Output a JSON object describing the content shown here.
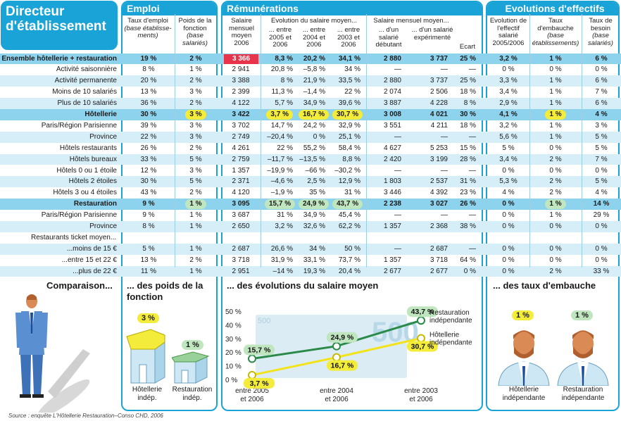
{
  "title": "Directeur d'établissement",
  "sections": {
    "emploi": "Emploi",
    "remunerations": "Rémunérations",
    "evolutions": "Evolutions d'effectifs"
  },
  "columns": {
    "taux_emploi": "Taux d'emploi",
    "taux_emploi_note": "(base établisse-ments)",
    "poids_fonction": "Poids de la fonction",
    "poids_fonction_note": "(base salariés)",
    "salaire_mensuel_moyen": "Salaire mensuel moyen 2006",
    "evolution_salaire": "Evolution du salaire moyen...",
    "entre_2005": "... entre 2005 et 2006",
    "entre_2004": "... entre 2004 et 2006",
    "entre_2003": "... entre 2003 et 2006",
    "salaire_mensuel_moyen2": "Salaire mensuel moyen...",
    "debutant": "... d'un salarié débutant",
    "experimente": "... d'un salarié expérimenté",
    "ecart": "Ecart",
    "evolution_effectif": "Evolution de l'effectif salarié 2005/2006",
    "taux_embauche": "Taux d'embauche",
    "taux_embauche_note": "(base établissements)",
    "taux_besoin": "Taux de besoin",
    "taux_besoin_note": "(base salariés)"
  },
  "rows": [
    {
      "label": "Ensemble hôtellerie + restauration",
      "style": "hl",
      "v": [
        "19 %",
        "2 %",
        "3 366",
        "8,3 %",
        "20,2 %",
        "34,1 %",
        "2 880",
        "3 737",
        "25 %",
        "3,2 %",
        "1 %",
        "6 %"
      ]
    },
    {
      "label": "Activité saisonnière",
      "style": "",
      "v": [
        "8 %",
        "1 %",
        "2 941",
        "20,8 %",
        "–5,8 %",
        "34 %",
        "—",
        "—",
        "—",
        "0 %",
        "0 %",
        "0 %"
      ]
    },
    {
      "label": "Activité permanente",
      "style": "alt",
      "v": [
        "20 %",
        "2 %",
        "3 388",
        "8 %",
        "21,9 %",
        "33,5 %",
        "2 880",
        "3 737",
        "25 %",
        "3,3 %",
        "1 %",
        "6 %"
      ]
    },
    {
      "label": "Moins de 10 salariés",
      "style": "",
      "v": [
        "13 %",
        "3 %",
        "2 399",
        "11,3 %",
        "–1,4 %",
        "22 %",
        "2 074",
        "2 506",
        "18 %",
        "3,4 %",
        "1 %",
        "7 %"
      ]
    },
    {
      "label": "Plus de 10 salariés",
      "style": "alt",
      "v": [
        "36 %",
        "2 %",
        "4 122",
        "5,7 %",
        "34,9 %",
        "39,6 %",
        "3 887",
        "4 228",
        "8 %",
        "2,9 %",
        "1 %",
        "6 %"
      ]
    },
    {
      "label": "Hôtellerie",
      "style": "hl",
      "v": [
        "30 %",
        "3 %",
        "3 422",
        "3,7 %",
        "16,7 %",
        "30,7 %",
        "3 008",
        "4 021",
        "30 %",
        "4,1 %",
        "1 %",
        "4 %"
      ]
    },
    {
      "label": "Paris/Région Parisienne",
      "style": "",
      "v": [
        "39 %",
        "3 %",
        "3 702",
        "14,7 %",
        "24,2 %",
        "32,9 %",
        "3 551",
        "4 211",
        "18 %",
        "3,2 %",
        "1 %",
        "3 %"
      ]
    },
    {
      "label": "Province",
      "style": "alt",
      "v": [
        "22 %",
        "3 %",
        "2 749",
        "–20,4 %",
        "0 %",
        "25,1 %",
        "—",
        "—",
        "—",
        "5,6 %",
        "1 %",
        "5 %"
      ]
    },
    {
      "label": "Hôtels restaurants",
      "style": "",
      "v": [
        "26 %",
        "2 %",
        "4 261",
        "22 %",
        "55,2 %",
        "58,4 %",
        "4 627",
        "5 253",
        "15 %",
        "5 %",
        "0 %",
        "5 %"
      ]
    },
    {
      "label": "Hôtels bureaux",
      "style": "alt",
      "v": [
        "33 %",
        "5 %",
        "2 759",
        "–11,7 %",
        "–13,5 %",
        "8,8 %",
        "2 420",
        "3 199",
        "28 %",
        "3,4 %",
        "2 %",
        "7 %"
      ]
    },
    {
      "label": "Hôtels 0 ou 1 étoile",
      "style": "",
      "v": [
        "12 %",
        "3 %",
        "1 357",
        "–19,9 %",
        "–66 %",
        "–30,2 %",
        "—",
        "—",
        "—",
        "0 %",
        "0 %",
        "0 %"
      ]
    },
    {
      "label": "Hôtels 2 étoiles",
      "style": "alt",
      "v": [
        "30 %",
        "5 %",
        "2 371",
        "–4,6 %",
        "2,5 %",
        "12,9 %",
        "1 803",
        "2 537",
        "31 %",
        "5,3 %",
        "2 %",
        "5 %"
      ]
    },
    {
      "label": "Hôtels 3 ou 4 étoiles",
      "style": "",
      "v": [
        "43 %",
        "2 %",
        "4 120",
        "–1,9 %",
        "35 %",
        "31 %",
        "3 446",
        "4 392",
        "23 %",
        "4 %",
        "2 %",
        "4 %"
      ]
    },
    {
      "label": "Restauration",
      "style": "hl",
      "v": [
        "9 %",
        "1 %",
        "3 095",
        "15,7 %",
        "24,9 %",
        "43,7 %",
        "2 238",
        "3 027",
        "26 %",
        "0 %",
        "1 %",
        "14 %"
      ]
    },
    {
      "label": "Paris/Région Parisienne",
      "style": "",
      "v": [
        "9 %",
        "1 %",
        "3 687",
        "31 %",
        "34,9 %",
        "45,4 %",
        "—",
        "—",
        "—",
        "0 %",
        "1 %",
        "29 %"
      ]
    },
    {
      "label": "Province",
      "style": "alt",
      "v": [
        "8 %",
        "1 %",
        "2 650",
        "3,2 %",
        "32,6 %",
        "62,2 %",
        "1 357",
        "2 368",
        "38 %",
        "0 %",
        "0 %",
        "0 %"
      ]
    },
    {
      "label": "Restaurants ticket moyen...",
      "style": "",
      "v": [
        "",
        "",
        "",
        "",
        "",
        "",
        "",
        "",
        "",
        "",
        "",
        ""
      ]
    },
    {
      "label": "...moins de 15 €",
      "style": "alt",
      "v": [
        "5 %",
        "1 %",
        "2 687",
        "26,6 %",
        "34 %",
        "50 %",
        "—",
        "2 687",
        "—",
        "0 %",
        "0 %",
        "0 %"
      ]
    },
    {
      "label": "...entre 15 et 22 €",
      "style": "",
      "v": [
        "13 %",
        "2 %",
        "3 718",
        "31,9 %",
        "33,1 %",
        "73,7 %",
        "1 357",
        "3 718",
        "64 %",
        "0 %",
        "0 %",
        "0 %"
      ]
    },
    {
      "label": "...plus de 22 €",
      "style": "alt",
      "v": [
        "11 %",
        "1 %",
        "2 951",
        "–14 %",
        "19,3 %",
        "20,4 %",
        "2 677",
        "2 677",
        "0 %",
        "0 %",
        "2 %",
        "33 %"
      ]
    }
  ],
  "bottom": {
    "comparaison": "Comparaison...",
    "poids_title": "... des poids de la fonction",
    "salaire_title": "... des évolutions du salaire moyen",
    "embauche_title": "... des taux d'embauche",
    "poids_hotellerie_value": "3 %",
    "poids_hotellerie_label": "Hôtellerie indép.",
    "poids_restauration_value": "1 %",
    "poids_restauration_label": "Restauration indép.",
    "embauche_hotellerie_value": "1 %",
    "embauche_hotellerie_label": "Hôtellerie indépendante",
    "embauche_restauration_value": "1 %",
    "embauche_restauration_label": "Restauration indépendante",
    "banknote_text": "500"
  },
  "chart_data": {
    "type": "line",
    "categories": [
      "entre 2005 et 2006",
      "entre 2004 et 2006",
      "entre 2003 et 2006"
    ],
    "ylim": [
      0,
      50
    ],
    "yticks": [
      "0 %",
      "10 %",
      "20 %",
      "30 %",
      "40 %",
      "50 %"
    ],
    "series": [
      {
        "name": "Restauration indépendante",
        "values": [
          15.7,
          24.9,
          43.7
        ],
        "labels": [
          "15,7 %",
          "24,9 %",
          "43,7 %"
        ],
        "color": "#2a8a4a",
        "label_bg": "#bfe6bf"
      },
      {
        "name": "Hôtellerie indépendante",
        "values": [
          3.7,
          16.7,
          30.7
        ],
        "labels": [
          "3,7 %",
          "16,7 %",
          "30,7 %"
        ],
        "color": "#f2e31a",
        "label_bg": "#f4ec3a"
      }
    ]
  },
  "source": "Source : enquête L'Hôtellerie Restauration–Conso CHD, 2006"
}
